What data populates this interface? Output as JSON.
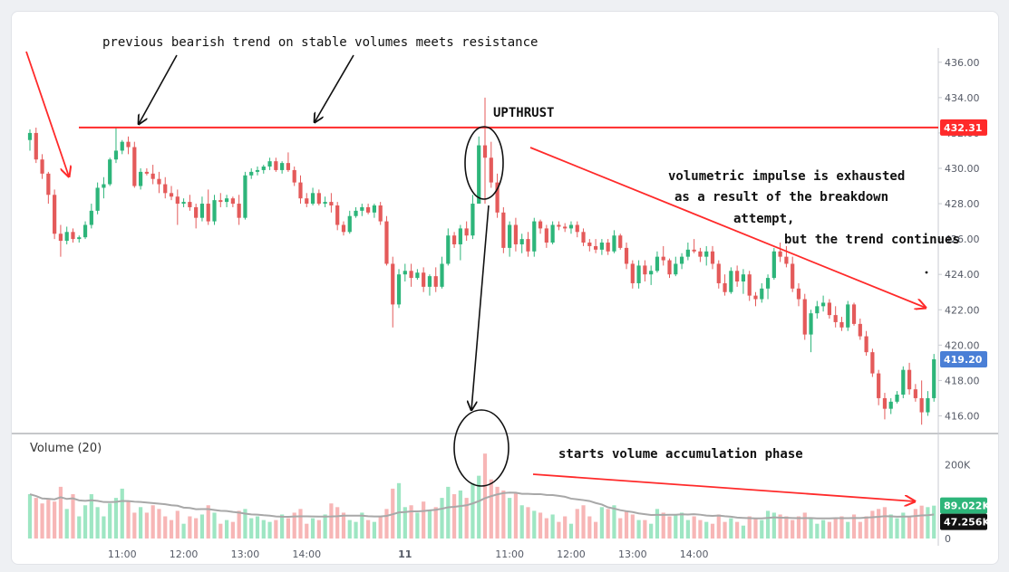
{
  "chart_data": {
    "type": "candlestick",
    "price_axis": {
      "range": [
        415,
        436.5
      ],
      "ticks": [
        "436.00",
        "434.00",
        "432.00",
        "430.00",
        "428.00",
        "426.00",
        "424.00",
        "422.00",
        "420.00",
        "418.00",
        "416.00"
      ]
    },
    "volume_pane": {
      "title": "Volume (20)",
      "range": [
        0,
        250000
      ],
      "ticks": [
        "200K",
        "0"
      ],
      "last_volume_label": "89.022K",
      "ma_label": "47.256K"
    },
    "time_axis": {
      "labels": [
        "11:00",
        "12:00",
        "13:00",
        "14:00",
        "11",
        "11:00",
        "12:00",
        "13:00",
        "14:00"
      ],
      "label_candle_index": [
        15,
        25,
        35,
        45,
        61,
        78,
        88,
        98,
        108
      ],
      "day_separator_label": "11"
    },
    "resistance": {
      "price": 432.31,
      "label": "432.31"
    },
    "last_price": {
      "price": 419.2,
      "label": "419.20"
    },
    "colors": {
      "up": "#2db57a",
      "down": "#e45a5a",
      "vol_up": "#9ee6c3",
      "vol_down": "#f7b6b6",
      "resistance": "#ff2a2a",
      "last_price_badge": "#4a7fd6",
      "volume_badge": "#2db57a",
      "ma_badge": "#111111",
      "ma_line": "#a8a8a8"
    },
    "candles": [
      [
        431.6,
        432.2,
        431.0,
        432.0,
        120000
      ],
      [
        432.0,
        432.3,
        430.3,
        430.5,
        110000
      ],
      [
        430.5,
        430.8,
        429.4,
        429.7,
        95000
      ],
      [
        429.7,
        429.8,
        428.0,
        428.5,
        105000
      ],
      [
        428.5,
        428.8,
        426.0,
        426.3,
        100000
      ],
      [
        426.3,
        426.8,
        425.0,
        425.9,
        140000
      ],
      [
        425.9,
        426.7,
        425.7,
        426.4,
        80000
      ],
      [
        426.4,
        426.6,
        425.8,
        426.0,
        120000
      ],
      [
        426.0,
        426.2,
        425.8,
        426.1,
        60000
      ],
      [
        426.1,
        427.0,
        426.0,
        426.8,
        90000
      ],
      [
        426.8,
        428.0,
        426.6,
        427.6,
        120000
      ],
      [
        427.6,
        429.2,
        427.4,
        428.9,
        85000
      ],
      [
        428.9,
        429.5,
        428.3,
        429.1,
        60000
      ],
      [
        429.1,
        430.6,
        429.0,
        430.5,
        95000
      ],
      [
        430.5,
        432.3,
        430.3,
        431.0,
        110000
      ],
      [
        431.0,
        431.6,
        430.8,
        431.5,
        135000
      ],
      [
        431.5,
        431.8,
        430.8,
        431.2,
        100000
      ],
      [
        431.2,
        431.5,
        428.9,
        429.0,
        70000
      ],
      [
        429.0,
        430.0,
        428.8,
        429.8,
        85000
      ],
      [
        429.8,
        430.0,
        429.6,
        429.7,
        70000
      ],
      [
        429.7,
        430.2,
        429.1,
        429.4,
        90000
      ],
      [
        429.4,
        429.8,
        428.6,
        429.1,
        80000
      ],
      [
        429.1,
        429.5,
        428.3,
        428.6,
        60000
      ],
      [
        428.6,
        429.0,
        428.2,
        428.4,
        50000
      ],
      [
        428.4,
        428.8,
        426.8,
        428.0,
        75000
      ],
      [
        428.0,
        428.3,
        427.8,
        428.1,
        40000
      ],
      [
        428.1,
        428.5,
        427.6,
        427.8,
        60000
      ],
      [
        427.8,
        428.0,
        426.6,
        427.2,
        55000
      ],
      [
        427.2,
        428.4,
        427.0,
        428.0,
        65000
      ],
      [
        428.0,
        428.8,
        426.8,
        427.0,
        90000
      ],
      [
        427.0,
        428.5,
        426.8,
        428.2,
        70000
      ],
      [
        428.2,
        428.6,
        427.8,
        428.1,
        40000
      ],
      [
        428.1,
        428.5,
        427.8,
        428.3,
        50000
      ],
      [
        428.3,
        428.4,
        427.8,
        428.0,
        45000
      ],
      [
        428.0,
        428.5,
        426.8,
        427.2,
        75000
      ],
      [
        427.2,
        429.8,
        427.1,
        429.6,
        80000
      ],
      [
        429.6,
        430.0,
        429.4,
        429.8,
        55000
      ],
      [
        429.8,
        430.1,
        429.6,
        429.9,
        60000
      ],
      [
        429.9,
        430.2,
        429.7,
        430.1,
        50000
      ],
      [
        430.1,
        430.6,
        429.9,
        430.4,
        45000
      ],
      [
        430.4,
        430.6,
        429.8,
        429.9,
        50000
      ],
      [
        429.9,
        430.4,
        429.7,
        430.3,
        65000
      ],
      [
        430.3,
        430.9,
        429.8,
        429.9,
        55000
      ],
      [
        429.9,
        430.1,
        429.0,
        429.2,
        70000
      ],
      [
        429.2,
        429.6,
        428.0,
        428.3,
        80000
      ],
      [
        428.3,
        428.6,
        427.8,
        428.0,
        40000
      ],
      [
        428.0,
        428.9,
        427.9,
        428.6,
        55000
      ],
      [
        428.6,
        428.8,
        427.9,
        428.0,
        50000
      ],
      [
        428.0,
        428.4,
        427.8,
        428.1,
        65000
      ],
      [
        428.1,
        428.6,
        427.5,
        427.9,
        95000
      ],
      [
        427.9,
        428.1,
        426.5,
        426.8,
        85000
      ],
      [
        426.8,
        427.0,
        426.2,
        426.4,
        70000
      ],
      [
        426.4,
        427.6,
        426.3,
        427.3,
        50000
      ],
      [
        427.3,
        427.8,
        427.2,
        427.6,
        45000
      ],
      [
        427.6,
        428.0,
        427.3,
        427.8,
        70000
      ],
      [
        427.8,
        428.0,
        427.4,
        427.5,
        50000
      ],
      [
        427.5,
        428.0,
        427.2,
        427.9,
        45000
      ],
      [
        427.9,
        428.1,
        426.8,
        427.0,
        60000
      ],
      [
        427.0,
        427.3,
        424.5,
        424.6,
        80000
      ],
      [
        424.6,
        425.0,
        421.0,
        422.3,
        135000
      ],
      [
        422.3,
        424.3,
        422.1,
        424.0,
        150000
      ],
      [
        424.0,
        424.6,
        423.6,
        424.2,
        85000
      ],
      [
        424.2,
        424.6,
        423.3,
        423.8,
        90000
      ],
      [
        423.8,
        424.3,
        423.7,
        424.1,
        70000
      ],
      [
        424.1,
        424.4,
        423.0,
        423.3,
        100000
      ],
      [
        423.3,
        424.0,
        422.8,
        423.9,
        75000
      ],
      [
        423.9,
        424.4,
        423.0,
        423.3,
        85000
      ],
      [
        423.3,
        425.0,
        423.2,
        424.6,
        110000
      ],
      [
        424.6,
        426.6,
        424.5,
        426.2,
        140000
      ],
      [
        426.2,
        426.4,
        425.5,
        425.7,
        120000
      ],
      [
        425.7,
        426.8,
        424.8,
        426.6,
        130000
      ],
      [
        426.6,
        427.0,
        425.9,
        426.2,
        110000
      ],
      [
        426.2,
        428.5,
        426.0,
        428.0,
        150000
      ],
      [
        428.0,
        431.8,
        428.0,
        431.3,
        170000
      ],
      [
        431.3,
        434.0,
        428.0,
        430.6,
        230000
      ],
      [
        430.6,
        431.5,
        428.9,
        429.2,
        160000
      ],
      [
        429.2,
        429.7,
        427.2,
        427.5,
        140000
      ],
      [
        427.5,
        427.8,
        425.2,
        425.5,
        130000
      ],
      [
        425.5,
        427.0,
        425.0,
        426.8,
        110000
      ],
      [
        426.8,
        427.2,
        425.3,
        425.7,
        125000
      ],
      [
        425.7,
        426.3,
        425.2,
        426.0,
        90000
      ],
      [
        426.0,
        426.4,
        425.0,
        425.3,
        85000
      ],
      [
        425.3,
        427.2,
        425.0,
        427.0,
        75000
      ],
      [
        427.0,
        427.1,
        426.3,
        426.6,
        70000
      ],
      [
        426.6,
        426.8,
        425.5,
        425.8,
        55000
      ],
      [
        425.8,
        427.0,
        425.7,
        426.8,
        65000
      ],
      [
        426.8,
        427.0,
        426.5,
        426.7,
        45000
      ],
      [
        426.7,
        426.9,
        426.4,
        426.6,
        60000
      ],
      [
        426.6,
        427.0,
        426.3,
        426.8,
        40000
      ],
      [
        426.8,
        427.0,
        426.1,
        426.4,
        80000
      ],
      [
        426.4,
        426.6,
        425.6,
        425.8,
        90000
      ],
      [
        425.8,
        426.0,
        425.3,
        425.6,
        60000
      ],
      [
        425.6,
        426.0,
        425.2,
        425.4,
        45000
      ],
      [
        425.4,
        426.0,
        425.1,
        425.8,
        85000
      ],
      [
        425.8,
        426.0,
        425.1,
        425.3,
        80000
      ],
      [
        425.3,
        426.5,
        425.2,
        426.2,
        90000
      ],
      [
        426.2,
        426.3,
        425.4,
        425.5,
        55000
      ],
      [
        425.5,
        425.8,
        424.3,
        424.6,
        75000
      ],
      [
        424.6,
        424.8,
        423.2,
        423.5,
        65000
      ],
      [
        423.5,
        424.8,
        423.2,
        424.5,
        50000
      ],
      [
        424.5,
        424.8,
        423.6,
        424.0,
        50000
      ],
      [
        424.0,
        424.5,
        423.4,
        424.2,
        40000
      ],
      [
        424.2,
        425.3,
        424.1,
        425.0,
        80000
      ],
      [
        425.0,
        425.6,
        424.5,
        424.8,
        70000
      ],
      [
        424.8,
        424.9,
        423.8,
        424.0,
        60000
      ],
      [
        424.0,
        425.0,
        423.9,
        424.6,
        65000
      ],
      [
        424.6,
        425.2,
        424.3,
        425.0,
        70000
      ],
      [
        425.0,
        425.8,
        424.8,
        425.4,
        50000
      ],
      [
        425.4,
        426.0,
        425.2,
        425.3,
        60000
      ],
      [
        425.3,
        425.5,
        424.7,
        425.0,
        50000
      ],
      [
        425.0,
        425.6,
        424.5,
        425.3,
        45000
      ],
      [
        425.3,
        425.6,
        424.3,
        424.6,
        40000
      ],
      [
        424.6,
        424.8,
        423.2,
        423.5,
        65000
      ],
      [
        423.5,
        424.0,
        422.8,
        423.0,
        45000
      ],
      [
        423.0,
        424.4,
        422.9,
        424.2,
        55000
      ],
      [
        424.2,
        424.5,
        423.3,
        423.6,
        45000
      ],
      [
        423.6,
        424.3,
        422.9,
        424.0,
        35000
      ],
      [
        424.0,
        424.2,
        422.5,
        422.8,
        60000
      ],
      [
        422.8,
        423.0,
        422.2,
        422.6,
        55000
      ],
      [
        422.6,
        423.5,
        422.4,
        423.2,
        50000
      ],
      [
        423.2,
        424.0,
        422.6,
        423.8,
        75000
      ],
      [
        423.8,
        425.5,
        423.7,
        425.3,
        70000
      ],
      [
        425.3,
        425.8,
        424.7,
        425.0,
        65000
      ],
      [
        425.0,
        425.6,
        424.4,
        424.6,
        60000
      ],
      [
        424.6,
        425.0,
        423.0,
        423.2,
        50000
      ],
      [
        423.2,
        423.5,
        422.2,
        422.6,
        60000
      ],
      [
        422.6,
        422.9,
        420.3,
        420.6,
        70000
      ],
      [
        420.6,
        422.0,
        419.6,
        421.8,
        55000
      ],
      [
        421.8,
        422.5,
        421.5,
        422.2,
        40000
      ],
      [
        422.2,
        422.8,
        421.9,
        422.4,
        50000
      ],
      [
        422.4,
        422.6,
        421.5,
        421.7,
        45000
      ],
      [
        421.7,
        422.2,
        421.0,
        421.3,
        55000
      ],
      [
        421.3,
        421.6,
        420.8,
        421.0,
        60000
      ],
      [
        421.0,
        422.5,
        420.8,
        422.3,
        45000
      ],
      [
        422.3,
        422.4,
        421.1,
        421.2,
        65000
      ],
      [
        421.2,
        421.5,
        420.3,
        420.5,
        45000
      ],
      [
        420.5,
        420.8,
        419.4,
        419.6,
        60000
      ],
      [
        419.6,
        419.8,
        418.2,
        418.4,
        75000
      ],
      [
        418.4,
        418.6,
        416.6,
        417.0,
        80000
      ],
      [
        417.0,
        417.3,
        415.8,
        416.4,
        85000
      ],
      [
        416.4,
        417.0,
        416.1,
        416.8,
        65000
      ],
      [
        416.8,
        417.4,
        416.7,
        417.2,
        55000
      ],
      [
        417.2,
        418.8,
        417.0,
        418.6,
        70000
      ],
      [
        418.6,
        419.0,
        417.2,
        417.5,
        60000
      ],
      [
        417.5,
        417.8,
        416.8,
        417.0,
        80000
      ],
      [
        417.0,
        418.0,
        415.5,
        416.2,
        89000
      ],
      [
        416.2,
        417.4,
        416.0,
        417.0,
        85000
      ],
      [
        417.0,
        419.5,
        416.8,
        419.2,
        89022
      ]
    ],
    "annotations": [
      "previous bearish trend on stable volumes meets resistance",
      "UPTHRUST",
      "volumetric impulse is exhausted",
      "as a result of the breakdown",
      "attempt,",
      "but the trend continues",
      "starts  volume accumulation phase"
    ]
  }
}
